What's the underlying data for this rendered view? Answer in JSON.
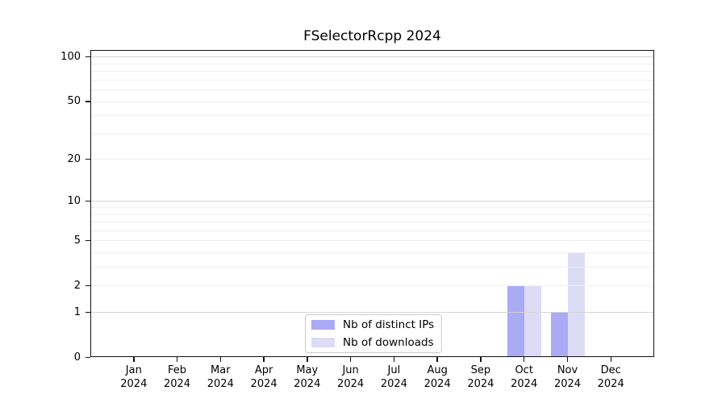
{
  "chart_data": {
    "type": "bar",
    "title": "FSelectorRcpp 2024",
    "categories": [
      "Jan 2024",
      "Feb 2024",
      "Mar 2024",
      "Apr 2024",
      "May 2024",
      "Jun 2024",
      "Jul 2024",
      "Aug 2024",
      "Sep 2024",
      "Oct 2024",
      "Nov 2024",
      "Dec 2024"
    ],
    "series": [
      {
        "name": "Nb of distinct IPs",
        "color": "#aaaaf5",
        "values": [
          0,
          0,
          0,
          0,
          0,
          0,
          0,
          0,
          0,
          2,
          1,
          0
        ]
      },
      {
        "name": "Nb of downloads",
        "color": "#dcdcf6",
        "values": [
          0,
          0,
          0,
          0,
          0,
          0,
          0,
          0,
          0,
          2,
          4,
          0
        ]
      }
    ],
    "xlabel": "",
    "ylabel": "",
    "yscale": "log1p",
    "ylim": [
      0,
      111
    ],
    "yticks": [
      0,
      1,
      2,
      5,
      10,
      20,
      50,
      100
    ],
    "grid": {
      "minor_values": [
        2,
        3,
        4,
        5,
        6,
        7,
        8,
        9,
        20,
        30,
        40,
        50,
        60,
        70,
        80,
        90
      ],
      "major_values": [
        1,
        10,
        100
      ]
    },
    "legend": {
      "position": "lower center"
    }
  }
}
